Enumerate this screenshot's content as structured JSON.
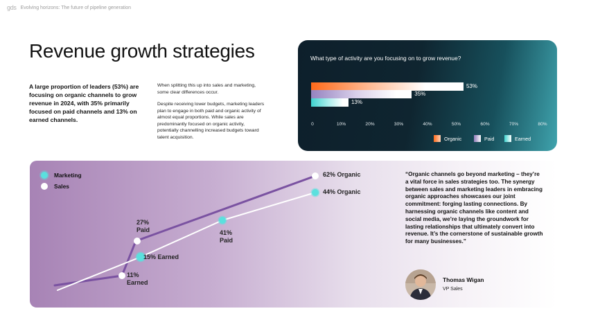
{
  "header": {
    "logo": "gds",
    "tagline": "Evolving horizons: The future of pipeline generation"
  },
  "page_title": "Revenue growth strategies",
  "lead_text": "A large proportion of leaders (53%) are focusing on organic channels to grow revenue in 2024, with 35% primarily focused on paid channels and 13% on earned channels.",
  "body": {
    "p1": "When splitting this up into sales and marketing, some clear differences occur.",
    "p2": "Despite receiving lower budgets, marketing leaders plan to engage in both paid and organic activity of almost equal proportions. While sales are predominantly focused on organic activity, potentially channelling increased budgets toward talent acquisition."
  },
  "chart_data": [
    {
      "type": "bar",
      "orientation": "horizontal",
      "title": "What type of activity are you focusing on to grow revenue?",
      "categories": [
        "Organic",
        "Paid",
        "Earned"
      ],
      "values": [
        53,
        35,
        13
      ],
      "value_labels": [
        "53%",
        "35%",
        "13%"
      ],
      "xlim": [
        0,
        80
      ],
      "ticks": [
        "0",
        "10%",
        "20%",
        "30%",
        "40%",
        "50%",
        "60%",
        "70%",
        "80%"
      ],
      "legend": [
        "Organic",
        "Paid",
        "Earned"
      ],
      "legend_position": "bottom-right",
      "colors": {
        "organic": "#ff6a1a",
        "paid": "#8e7ab8",
        "earned": "#3ed3cf"
      }
    },
    {
      "type": "line",
      "categories": [
        "Earned",
        "Paid",
        "Organic"
      ],
      "series": [
        {
          "name": "Marketing",
          "values": [
            15,
            41,
            44
          ],
          "labels": [
            "15% Earned",
            "41% Paid",
            "44% Organic"
          ],
          "color": "#5be0de"
        },
        {
          "name": "Sales",
          "values": [
            11,
            27,
            62
          ],
          "labels": [
            "11% Earned",
            "27% Paid",
            "62% Organic"
          ],
          "color": "#ffffff"
        }
      ],
      "legend_position": "top-left"
    }
  ],
  "bar_chart": {
    "question": "What type of activity are you focusing on to grow revenue?",
    "bars": [
      {
        "label": "53%"
      },
      {
        "label": "35%"
      },
      {
        "label": "13%"
      }
    ],
    "ticks": [
      "0",
      "10%",
      "20%",
      "30%",
      "40%",
      "50%",
      "60%",
      "70%",
      "80%"
    ],
    "legend": [
      "Organic",
      "Paid",
      "Earned"
    ]
  },
  "line_chart": {
    "legend": [
      "Marketing",
      "Sales"
    ],
    "labels": {
      "sales_organic": "62% Organic",
      "marketing_organic": "44% Organic",
      "sales_paid_line1": "27%",
      "sales_paid_line2": "Paid",
      "marketing_paid_line1": "41%",
      "marketing_paid_line2": "Paid",
      "marketing_earned": "15% Earned",
      "sales_earned_line1": "11%",
      "sales_earned_line2": "Earned"
    }
  },
  "quote": "“Organic channels go beyond marketing – they’re a vital force in sales strategies too. The synergy between sales and marketing leaders in embracing organic approaches showcases our joint commitment: forging lasting connections. By harnessing organic channels like content and social media, we’re laying the groundwork for lasting relationships that ultimately convert into revenue. It’s the cornerstone of sustainable growth for many businesses.”",
  "person": {
    "name": "Thomas Wigan",
    "role": "VP Sales"
  }
}
